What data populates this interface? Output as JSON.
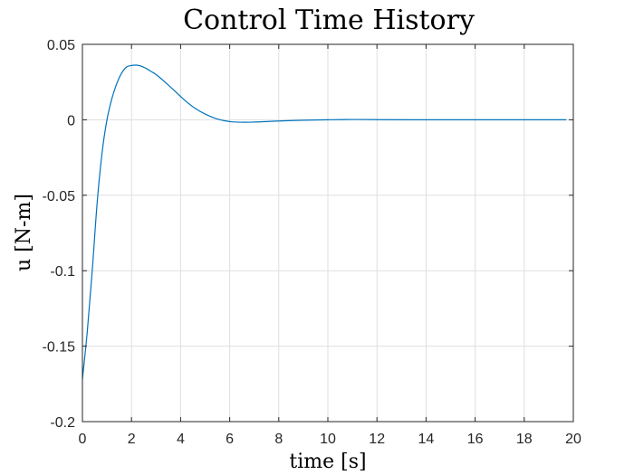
{
  "chart_data": {
    "type": "line",
    "title": "Control Time History",
    "xlabel": "time [s]",
    "ylabel": "u [N-m]",
    "xlim": [
      0,
      20
    ],
    "ylim": [
      -0.2,
      0.05
    ],
    "grid": true,
    "xticks": [
      0,
      2,
      4,
      6,
      8,
      10,
      12,
      14,
      16,
      18,
      20
    ],
    "xtick_labels": [
      "0",
      "2",
      "4",
      "6",
      "8",
      "10",
      "12",
      "14",
      "16",
      "18",
      "20"
    ],
    "yticks": [
      0.05,
      0,
      -0.05,
      -0.1,
      -0.15,
      -0.2
    ],
    "ytick_labels": [
      "0.05",
      "0",
      "-0.05",
      "-0.1",
      "-0.15",
      "-0.2"
    ],
    "series": [
      {
        "color": "#0072bd",
        "x": [
          0,
          0.2,
          0.4,
          0.6,
          0.8,
          1.0,
          1.2,
          1.4,
          1.6,
          1.8,
          2.0,
          2.2,
          2.4,
          2.6,
          2.8,
          3.0,
          3.4,
          3.8,
          4.2,
          4.6,
          5.0,
          5.5,
          6.0,
          6.5,
          7.0,
          7.5,
          8.0,
          9.0,
          10.0,
          11.0,
          12.0,
          14.0,
          16.0,
          18.0,
          19.7
        ],
        "y": [
          -0.172,
          -0.14,
          -0.1,
          -0.055,
          -0.022,
          0.0,
          0.014,
          0.024,
          0.031,
          0.035,
          0.036,
          0.0362,
          0.0355,
          0.034,
          0.032,
          0.03,
          0.0245,
          0.0185,
          0.0125,
          0.0075,
          0.0038,
          0.0005,
          -0.0012,
          -0.0016,
          -0.0015,
          -0.0012,
          -0.0008,
          -0.0003,
          0.0,
          0.0002,
          0.0001,
          0.0,
          0.0,
          0.0,
          0.0
        ]
      }
    ]
  }
}
